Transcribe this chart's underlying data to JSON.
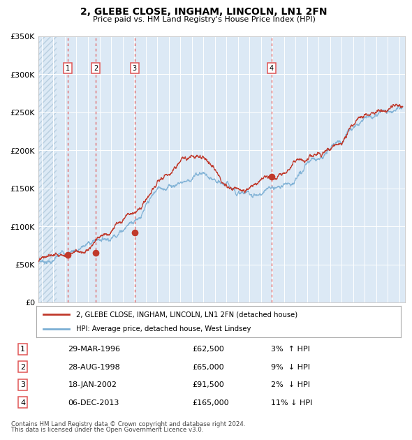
{
  "title": "2, GLEBE CLOSE, INGHAM, LINCOLN, LN1 2FN",
  "subtitle": "Price paid vs. HM Land Registry's House Price Index (HPI)",
  "legend_line1": "2, GLEBE CLOSE, INGHAM, LINCOLN, LN1 2FN (detached house)",
  "legend_line2": "HPI: Average price, detached house, West Lindsey",
  "footer1": "Contains HM Land Registry data © Crown copyright and database right 2024.",
  "footer2": "This data is licensed under the Open Government Licence v3.0.",
  "transactions": [
    {
      "num": 1,
      "date": "29-MAR-1996",
      "price": 62500,
      "pct": "3%",
      "dir": "↑",
      "x_year": 1996.24
    },
    {
      "num": 2,
      "date": "28-AUG-1998",
      "price": 65000,
      "pct": "9%",
      "dir": "↓",
      "x_year": 1998.66
    },
    {
      "num": 3,
      "date": "18-JAN-2002",
      "price": 91500,
      "pct": "2%",
      "dir": "↓",
      "x_year": 2002.05
    },
    {
      "num": 4,
      "date": "06-DEC-2013",
      "price": 165000,
      "pct": "11%",
      "dir": "↓",
      "x_year": 2013.93
    }
  ],
  "hpi_color": "#7bafd4",
  "price_color": "#c0392b",
  "vline_color": "#e05555",
  "dot_color": "#c0392b",
  "bg_color": "#dce9f5",
  "hatch_color": "#b8cfe0",
  "ylim": [
    0,
    350000
  ],
  "yticks": [
    0,
    50000,
    100000,
    150000,
    200000,
    250000,
    300000,
    350000
  ],
  "xlim_start": 1993.7,
  "xlim_end": 2025.5,
  "xticks_start": 1994,
  "xticks_end": 2025
}
